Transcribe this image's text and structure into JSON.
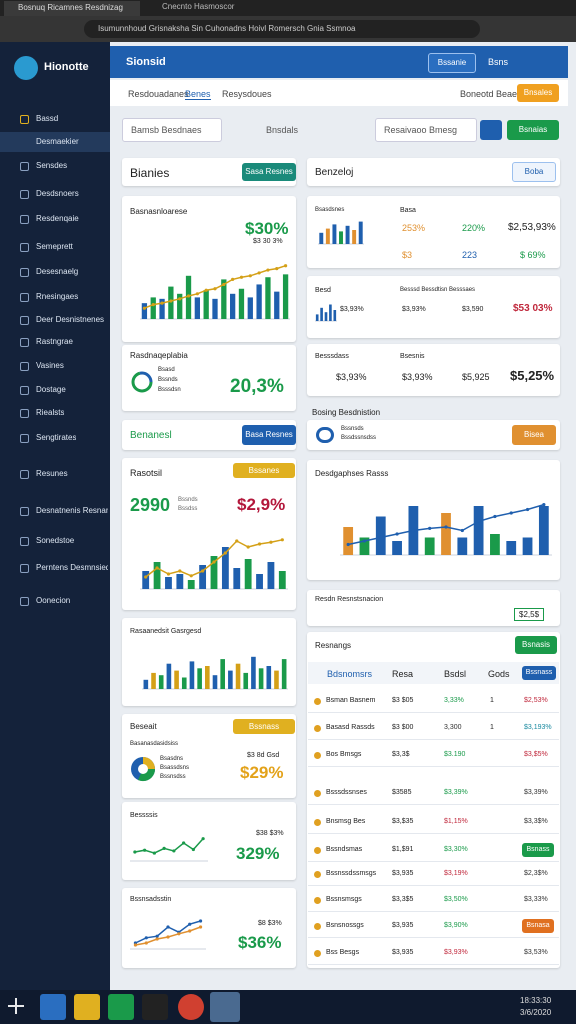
{
  "browser": {
    "tabs": [
      "Bosnuq Ricamnes Resdnizag",
      "Cnecnto Hasmoscor"
    ],
    "url": "Isumunnhoud Grisnaksha Sin Cuhonadns Hoivl Romersch Gnia Ssmnoa"
  },
  "sidebar": {
    "logo": "Hionotte",
    "items": [
      "Bassd",
      "Desmaekier",
      "Sensdes",
      "Desdsnoers",
      "Resdenqaie",
      "Semeprett",
      "Desesnaelg",
      "Rnesingaes",
      "Deer Desnistnenes",
      "Rastngrae",
      "Vasines",
      "Dostage",
      "Riealsts",
      "Sengtirates",
      "Resunes",
      "Desnatnenis Resnance",
      "Sonedstoe",
      "Perntens Desmnsieqe",
      "Oonecion"
    ]
  },
  "header": {
    "title": "Sionsid",
    "button": "Bssanie",
    "label": "Bsns"
  },
  "nav": {
    "tabs": [
      "Resdouadanes",
      "Benes",
      "Resysdoues"
    ],
    "status": "Boneotd Beaee",
    "action": "Bnsales"
  },
  "toolbar": {
    "search": "Bamsb Besdnaes",
    "filter": "Bnsdals",
    "input": "Resaivaoo Bmesg",
    "go": "Bsnaias"
  },
  "left": {
    "section": {
      "title": "Bianies",
      "button": "Sasa Resnes"
    },
    "revenue": {
      "title": "Basnasnloarese",
      "value": "$30%",
      "sub": "$3 30 3%"
    },
    "gauge": {
      "title": "Rasdnaqeplabia",
      "lines": [
        "Bsasd",
        "Bssnds",
        "Bsssdsn"
      ],
      "value": "20,3%"
    },
    "banner": {
      "title": "Benanesl",
      "button": "Basa Resnes"
    },
    "report": {
      "title": "Rasotsil",
      "badge": "Bssanes",
      "count": "2990",
      "lines": [
        "Bssnds",
        "Bssdss"
      ],
      "value": "$2,9%"
    },
    "groups": {
      "title": "Rasaanedsit Gasrgesd"
    },
    "share": {
      "title": "Beseait",
      "badge": "Bssnass",
      "sub": "Basanasdasidsiss",
      "lines": [
        "Bsasdns",
        "Bsassdsns",
        "Bssnsdss"
      ],
      "side": "$3 8d Gsd",
      "value": "$29%"
    },
    "trend": {
      "title": "Bessssis",
      "sub": "$38 $3%",
      "value": "329%"
    },
    "growth": {
      "title": "Bssnsadsstin",
      "sub": "$8 $3%",
      "value": "$36%"
    }
  },
  "right": {
    "section": {
      "title": "Benzeloj",
      "button": "Boba"
    },
    "metrics": {
      "title": "Bsasdsnes",
      "label": "Basa",
      "row1": [
        "253%",
        "220%",
        "$2,53,93%"
      ],
      "row2": [
        "$3",
        "223",
        "$ 69%"
      ]
    },
    "metrics2": {
      "title": "Besd",
      "label": "Besssd Bessdtisn Besssaes",
      "values": [
        "$3,93%",
        "$3,590",
        "$53 03%"
      ],
      "mini": "$3,93%"
    },
    "metrics3": {
      "title": "Besssdass",
      "label": "Bsesnis",
      "values": [
        "$3,93%",
        "$3,93%",
        "$5,925",
        "$5,25%"
      ]
    },
    "pending": {
      "title": "Bosing Besdnistion",
      "line1": "Bssnsds",
      "line2": "Bssdssnsdss",
      "button": "Bisea"
    },
    "chart_title": "Desdgaphses Rasss",
    "summary": {
      "title": "Resdn Resnstsnacion",
      "value": "$2,5$"
    },
    "table": {
      "title": "Resnangs",
      "button": "Bsnasis",
      "header": [
        "Bdsnomsrs",
        "Resa",
        "Bsdsl",
        "Gods"
      ],
      "header_button": "Bssnass",
      "rows": [
        {
          "name": "Bsman Basnem",
          "a": "$3 $05",
          "b": "3,33%",
          "count": "1",
          "d": "$2,53%",
          "b_color": "#1a9a4a",
          "d_color": "#c0283c"
        },
        {
          "name": "Basasd Rassds",
          "a": "$3 $00",
          "b": "3,300",
          "count": "1",
          "d": "$3,193%",
          "b_color": "#333333",
          "d_color": "#1a8aa0"
        },
        {
          "name": "Bos Bmsgs",
          "a": "$3,3$",
          "b": "$3.190",
          "d": "$3,$5%",
          "b_color": "#1a9a4a",
          "d_color": "#c0283c"
        },
        {
          "name": "Bsssdssnses",
          "a": "$3585",
          "b": "$3,39%",
          "d": "$3,39%",
          "b_color": "#1a9a4a",
          "d_color": "#333333"
        },
        {
          "name": "Bnsmsg Bes",
          "a": "$3,$35",
          "b": "$1,15%",
          "d": "$3,3$%",
          "b_color": "#c0283c",
          "d_color": "#333333"
        },
        {
          "name": "Bssndsmas",
          "a": "$1,$91",
          "b": "$3,30%",
          "badge": "Bsnass",
          "badge_color": "#1a9a4a",
          "b_color": "#1a9a4a"
        },
        {
          "name": "Bssnssdssmsgs",
          "a": "$3,935",
          "b": "$3,19%",
          "d": "$2,3$%",
          "b_color": "#c0283c",
          "d_color": "#333333"
        },
        {
          "name": "Bssnsmsgs",
          "a": "$3,3$5",
          "b": "$3,50%",
          "d": "$3,33%",
          "b_color": "#1a9a4a",
          "d_color": "#333333"
        },
        {
          "name": "Bsnsnossgs",
          "a": "$3,935",
          "b": "$3,90%",
          "badge": "Bsnasa",
          "badge_color": "#e07020",
          "b_color": "#1a9a4a"
        },
        {
          "name": "Bss Besgs",
          "a": "$3,935",
          "b": "$3,93%",
          "d": "$3,53%",
          "b_color": "#c0283c",
          "d_color": "#333333"
        }
      ]
    }
  },
  "taskbar": {
    "time": "18:33:30",
    "date": "3/6/2020"
  },
  "chart_data": [
    {
      "type": "bar",
      "ylim": [
        0,
        100
      ],
      "values": [
        22,
        30,
        28,
        45,
        35,
        60,
        30,
        40,
        28,
        55,
        35,
        42,
        30,
        48,
        58,
        38,
        62
      ],
      "colors": [
        "#1f5fae",
        "#1a9a4a",
        "#1f5fae",
        "#1a9a4a",
        "#1a9a4a",
        "#1a9a4a",
        "#1f5fae",
        "#1a9a4a",
        "#1f5fae",
        "#1a9a4a",
        "#1f5fae",
        "#1a9a4a",
        "#1f5fae",
        "#1f5fae",
        "#1a9a4a",
        "#1f5fae",
        "#1a9a4a"
      ],
      "line": {
        "values": [
          15,
          20,
          22,
          25,
          28,
          32,
          35,
          40,
          42,
          48,
          55,
          58,
          60,
          64,
          68,
          70,
          74
        ],
        "color": "#d4a017"
      }
    },
    {
      "type": "bar",
      "ylim": [
        0,
        100
      ],
      "values": [
        30,
        45,
        20,
        25,
        15,
        40,
        55,
        70,
        35,
        50,
        25,
        45,
        30
      ],
      "colors": [
        "#1f5fae",
        "#1a9a4a",
        "#1f5fae",
        "#1f5fae",
        "#1a9a4a",
        "#1f5fae",
        "#1a9a4a",
        "#1f5fae",
        "#1f5fae",
        "#1a9a4a",
        "#1f5fae",
        "#1f5fae",
        "#1a9a4a"
      ],
      "line": {
        "values": [
          20,
          35,
          25,
          30,
          22,
          30,
          45,
          60,
          80,
          70,
          75,
          78,
          82
        ],
        "color": "#d4a017"
      }
    },
    {
      "type": "bar",
      "ylim": [
        0,
        100
      ],
      "values": [
        20,
        35,
        30,
        55,
        40,
        25,
        60,
        45,
        50,
        30,
        65,
        40,
        55,
        35,
        70,
        45,
        50,
        40,
        65
      ],
      "colors": [
        "#1f5fae",
        "#d4a017",
        "#1a9a4a",
        "#1f5fae",
        "#d4a017",
        "#1a9a4a",
        "#1f5fae",
        "#1a9a4a",
        "#d4a017",
        "#1f5fae",
        "#1a9a4a",
        "#1f5fae",
        "#d4a017",
        "#1a9a4a",
        "#1f5fae",
        "#1a9a4a",
        "#1f5fae",
        "#d4a017",
        "#1a9a4a"
      ]
    },
    {
      "type": "line",
      "ylim": [
        0,
        100
      ],
      "series": [
        {
          "color": "#1a9a4a",
          "values": [
            25,
            30,
            22,
            35,
            28,
            50,
            32,
            62
          ]
        }
      ]
    },
    {
      "type": "line",
      "ylim": [
        0,
        100
      ],
      "series": [
        {
          "color": "#1f5fae",
          "values": [
            15,
            28,
            32,
            55,
            42,
            62,
            70
          ]
        },
        {
          "color": "#e09030",
          "values": [
            10,
            15,
            25,
            30,
            38,
            45,
            55
          ]
        }
      ]
    },
    {
      "type": "bar",
      "ylim": [
        0,
        100
      ],
      "values": [
        40,
        55,
        70,
        45,
        65,
        50,
        80
      ],
      "colors": [
        "#1f5fae",
        "#e09030",
        "#1f5fae",
        "#1a9a4a",
        "#1f5fae",
        "#e09030",
        "#1f5fae"
      ]
    },
    {
      "type": "bar",
      "ylim": [
        0,
        100
      ],
      "values": [
        30,
        60,
        40,
        75,
        50
      ],
      "colors": [
        "#1f5fae",
        "#1f5fae",
        "#1f5fae",
        "#1f5fae",
        "#1f5fae"
      ]
    },
    {
      "type": "bar",
      "ylim": [
        0,
        100
      ],
      "values": [
        40,
        25,
        55,
        20,
        70,
        25,
        60,
        25,
        70,
        30,
        20,
        25,
        70
      ],
      "colors": [
        "#e09030",
        "#1a9a4a",
        "#1f5fae",
        "#1f5fae",
        "#1f5fae",
        "#1a9a4a",
        "#e09030",
        "#1f5fae",
        "#1f5fae",
        "#1a9a4a",
        "#1f5fae",
        "#1f5fae",
        "#1f5fae"
      ],
      "line": {
        "values": [
          15,
          20,
          25,
          30,
          35,
          38,
          40,
          35,
          48,
          55,
          60,
          65,
          72
        ],
        "color": "#1f5fae"
      }
    }
  ]
}
